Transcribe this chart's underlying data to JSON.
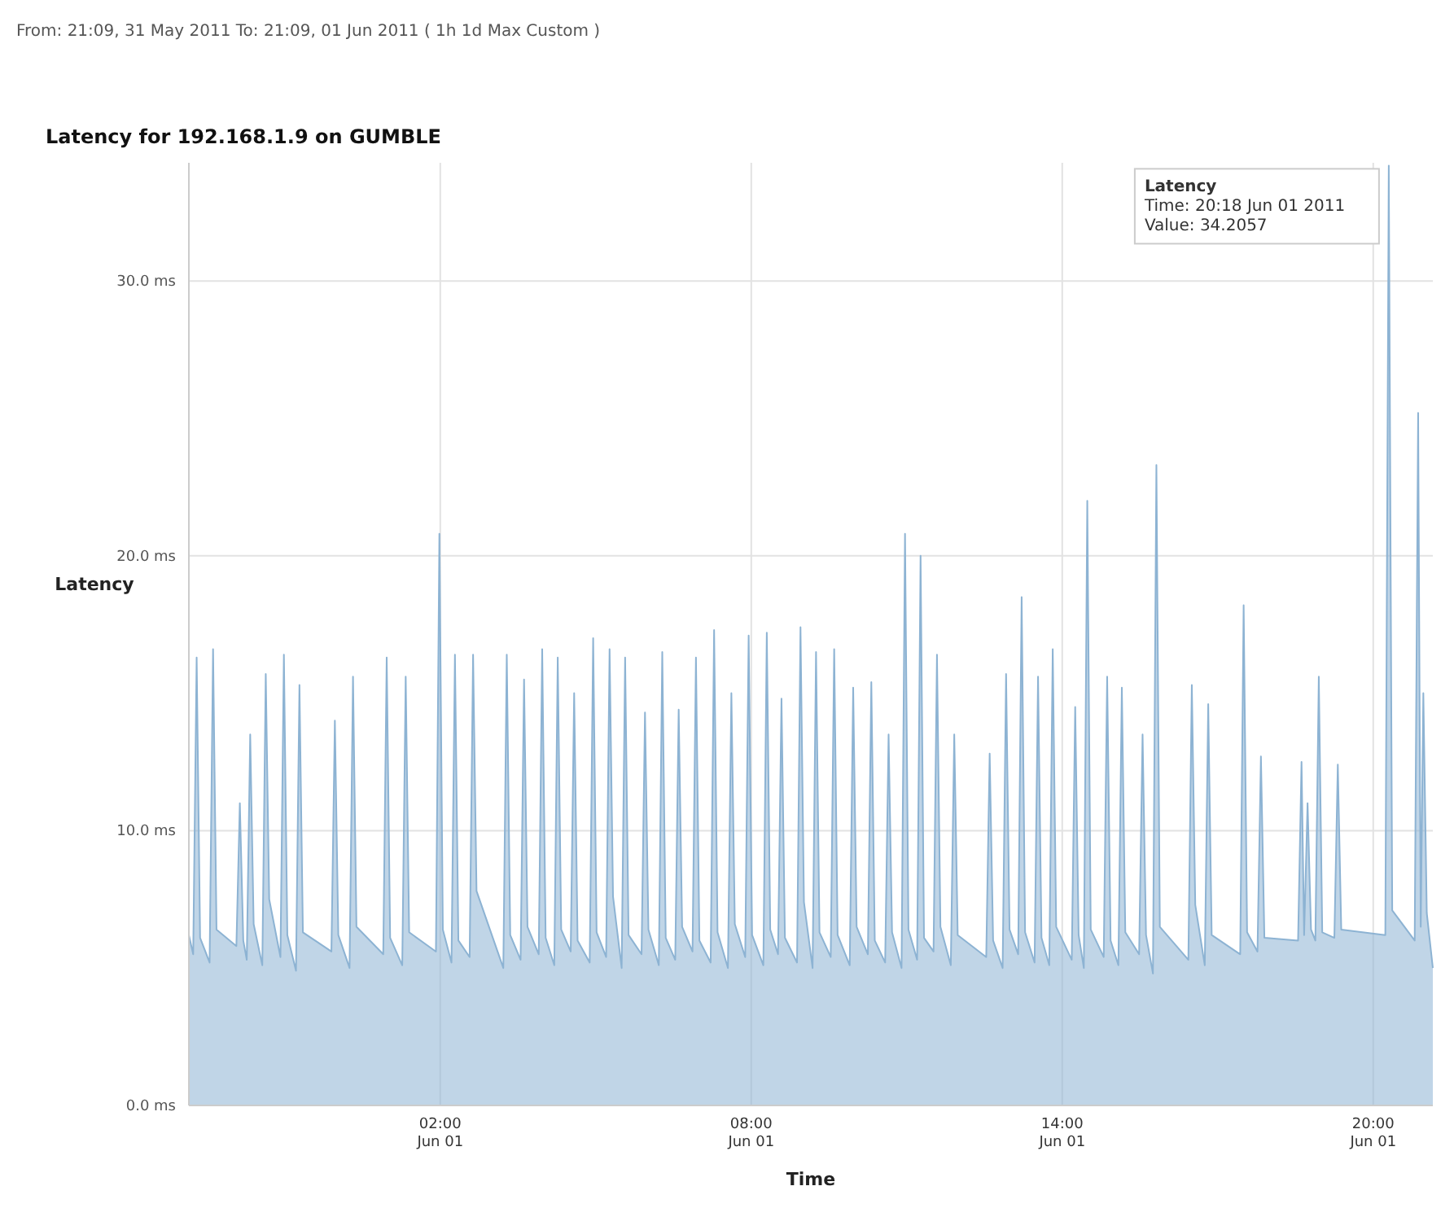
{
  "chart_data": {
    "type": "area",
    "title": "Latency for 192.168.1.9 on GUMBLE",
    "subtitle": "From: 21:09, 31 May 2011 To: 21:09, 01 Jun 2011 ( 1h 1d Max Custom )",
    "xlabel": "Time",
    "ylabel": "Latency",
    "xlim": [
      "2011-05-31T21:09",
      "2011-06-01T21:09"
    ],
    "xticks": [
      {
        "value": "2011-06-01T02:00",
        "label": "02:00\nJun 01"
      },
      {
        "value": "2011-06-01T08:00",
        "label": "08:00\nJun 01"
      },
      {
        "value": "2011-06-01T14:00",
        "label": "14:00\nJun 01"
      },
      {
        "value": "2011-06-01T20:00",
        "label": "20:00\nJun 01"
      }
    ],
    "ylim": [
      0,
      34.3
    ],
    "yticks": [
      {
        "value": 0,
        "label": "0.0 ms"
      },
      {
        "value": 10,
        "label": "10.0 ms"
      },
      {
        "value": 20,
        "label": "20.0 ms"
      },
      {
        "value": 30,
        "label": "30.0 ms"
      }
    ],
    "grid": true,
    "annotations": [
      {
        "text": "Latency\nTime: 20:18 Jun 01 2011\nValue: 34.2057",
        "x": "2011-06-01T20:18",
        "y": 34.2
      }
    ],
    "series": [
      {
        "color": "#8db3d3",
        "x": [
          "2011-05-31T21:09",
          "2011-05-31T21:14",
          "2011-05-31T21:18",
          "2011-05-31T21:22",
          "2011-05-31T21:33",
          "2011-05-31T21:37",
          "2011-05-31T21:41",
          "2011-05-31T22:04",
          "2011-05-31T22:08",
          "2011-05-31T22:12",
          "2011-05-31T22:16",
          "2011-05-31T22:20",
          "2011-05-31T22:24",
          "2011-05-31T22:34",
          "2011-05-31T22:38",
          "2011-05-31T22:42",
          "2011-05-31T22:55",
          "2011-05-31T22:59",
          "2011-05-31T23:03",
          "2011-05-31T23:13",
          "2011-05-31T23:17",
          "2011-05-31T23:21",
          "2011-05-31T23:54",
          "2011-05-31T23:58",
          "2011-06-01T00:02",
          "2011-06-01T00:15",
          "2011-06-01T00:19",
          "2011-06-01T00:23",
          "2011-06-01T00:54",
          "2011-06-01T00:58",
          "2011-06-01T01:02",
          "2011-06-01T01:16",
          "2011-06-01T01:20",
          "2011-06-01T01:24",
          "2011-06-01T01:55",
          "2011-06-01T01:59",
          "2011-06-01T02:03",
          "2011-06-01T02:13",
          "2011-06-01T02:17",
          "2011-06-01T02:21",
          "2011-06-01T02:34",
          "2011-06-01T02:38",
          "2011-06-01T02:42",
          "2011-06-01T03:13",
          "2011-06-01T03:17",
          "2011-06-01T03:21",
          "2011-06-01T03:33",
          "2011-06-01T03:37",
          "2011-06-01T03:41",
          "2011-06-01T03:54",
          "2011-06-01T03:58",
          "2011-06-01T04:02",
          "2011-06-01T04:12",
          "2011-06-01T04:16",
          "2011-06-01T04:20",
          "2011-06-01T04:31",
          "2011-06-01T04:35",
          "2011-06-01T04:39",
          "2011-06-01T04:53",
          "2011-06-01T04:57",
          "2011-06-01T05:01",
          "2011-06-01T05:12",
          "2011-06-01T05:16",
          "2011-06-01T05:20",
          "2011-06-01T05:30",
          "2011-06-01T05:34",
          "2011-06-01T05:38",
          "2011-06-01T05:53",
          "2011-06-01T05:57",
          "2011-06-01T06:01",
          "2011-06-01T06:13",
          "2011-06-01T06:17",
          "2011-06-01T06:21",
          "2011-06-01T06:32",
          "2011-06-01T06:36",
          "2011-06-01T06:40",
          "2011-06-01T06:52",
          "2011-06-01T06:56",
          "2011-06-01T07:00",
          "2011-06-01T07:13",
          "2011-06-01T07:17",
          "2011-06-01T07:21",
          "2011-06-01T07:33",
          "2011-06-01T07:37",
          "2011-06-01T07:41",
          "2011-06-01T07:53",
          "2011-06-01T07:57",
          "2011-06-01T08:01",
          "2011-06-01T08:14",
          "2011-06-01T08:18",
          "2011-06-01T08:22",
          "2011-06-01T08:31",
          "2011-06-01T08:35",
          "2011-06-01T08:39",
          "2011-06-01T08:53",
          "2011-06-01T08:57",
          "2011-06-01T09:01",
          "2011-06-01T09:11",
          "2011-06-01T09:15",
          "2011-06-01T09:19",
          "2011-06-01T09:32",
          "2011-06-01T09:36",
          "2011-06-01T09:40",
          "2011-06-01T09:54",
          "2011-06-01T09:58",
          "2011-06-01T10:02",
          "2011-06-01T10:15",
          "2011-06-01T10:19",
          "2011-06-01T10:23",
          "2011-06-01T10:35",
          "2011-06-01T10:39",
          "2011-06-01T10:43",
          "2011-06-01T10:54",
          "2011-06-01T10:58",
          "2011-06-01T11:02",
          "2011-06-01T11:12",
          "2011-06-01T11:16",
          "2011-06-01T11:20",
          "2011-06-01T11:31",
          "2011-06-01T11:35",
          "2011-06-01T11:39",
          "2011-06-01T11:51",
          "2011-06-01T11:55",
          "2011-06-01T11:59",
          "2011-06-01T12:32",
          "2011-06-01T12:36",
          "2011-06-01T12:40",
          "2011-06-01T12:51",
          "2011-06-01T12:55",
          "2011-06-01T12:59",
          "2011-06-01T13:09",
          "2011-06-01T13:13",
          "2011-06-01T13:17",
          "2011-06-01T13:28",
          "2011-06-01T13:32",
          "2011-06-01T13:36",
          "2011-06-01T13:45",
          "2011-06-01T13:49",
          "2011-06-01T13:53",
          "2011-06-01T14:11",
          "2011-06-01T14:15",
          "2011-06-01T14:19",
          "2011-06-01T14:25",
          "2011-06-01T14:29",
          "2011-06-01T14:33",
          "2011-06-01T14:48",
          "2011-06-01T14:52",
          "2011-06-01T14:56",
          "2011-06-01T15:05",
          "2011-06-01T15:09",
          "2011-06-01T15:13",
          "2011-06-01T15:29",
          "2011-06-01T15:33",
          "2011-06-01T15:37",
          "2011-06-01T15:45",
          "2011-06-01T15:49",
          "2011-06-01T15:53",
          "2011-06-01T16:26",
          "2011-06-01T16:30",
          "2011-06-01T16:34",
          "2011-06-01T16:45",
          "2011-06-01T16:49",
          "2011-06-01T16:53",
          "2011-06-01T17:26",
          "2011-06-01T17:30",
          "2011-06-01T17:34",
          "2011-06-01T17:46",
          "2011-06-01T17:50",
          "2011-06-01T17:54",
          "2011-06-01T18:33",
          "2011-06-01T18:37",
          "2011-06-01T18:40",
          "2011-06-01T18:44",
          "2011-06-01T18:48",
          "2011-06-01T18:53",
          "2011-06-01T18:57",
          "2011-06-01T19:01",
          "2011-06-01T19:15",
          "2011-06-01T19:19",
          "2011-06-01T19:23",
          "2011-06-01T20:14",
          "2011-06-01T20:18",
          "2011-06-01T20:22",
          "2011-06-01T20:48",
          "2011-06-01T20:52",
          "2011-06-01T20:55",
          "2011-06-01T20:58",
          "2011-06-01T21:02",
          "2011-06-01T21:09"
        ],
        "values": [
          6.2,
          5.5,
          16.3,
          6.1,
          5.2,
          16.6,
          6.4,
          5.8,
          11,
          6.0,
          5.3,
          13.5,
          6.6,
          5.1,
          15.7,
          7.5,
          5.4,
          16.4,
          6.2,
          4.9,
          15.3,
          6.3,
          5.6,
          14,
          6.2,
          5.0,
          15.6,
          6.5,
          5.5,
          16.3,
          6.1,
          5.1,
          15.6,
          6.3,
          5.6,
          20.8,
          6.4,
          5.2,
          16.4,
          6.0,
          5.4,
          16.4,
          7.8,
          5.0,
          16.4,
          6.2,
          5.3,
          15.5,
          6.5,
          5.5,
          16.6,
          6.1,
          5.1,
          16.3,
          6.4,
          5.6,
          15,
          6.0,
          5.2,
          17,
          6.3,
          5.4,
          16.6,
          7.6,
          5.0,
          16.3,
          6.2,
          5.5,
          14.3,
          6.4,
          5.1,
          16.5,
          6.1,
          5.3,
          14.4,
          6.5,
          5.6,
          16.3,
          6.0,
          5.2,
          17.3,
          6.3,
          5.0,
          15,
          6.6,
          5.4,
          17.1,
          6.2,
          5.1,
          17.2,
          6.4,
          5.5,
          14.8,
          6.1,
          5.2,
          17.4,
          7.4,
          5.0,
          16.5,
          6.3,
          5.4,
          16.6,
          6.2,
          5.1,
          15.2,
          6.5,
          5.5,
          15.4,
          6.0,
          5.2,
          13.5,
          6.3,
          5.0,
          20.8,
          6.4,
          5.3,
          20,
          6.1,
          5.6,
          16.4,
          6.5,
          5.1,
          13.5,
          6.2,
          5.4,
          12.8,
          6.0,
          5.0,
          15.7,
          6.4,
          5.5,
          18.5,
          6.3,
          5.2,
          15.6,
          6.1,
          5.1,
          16.6,
          6.5,
          5.3,
          14.5,
          6.2,
          5.0,
          22,
          6.4,
          5.4,
          15.6,
          6.0,
          5.1,
          15.2,
          6.3,
          5.5,
          13.5,
          6.2,
          4.8,
          23.3,
          6.5,
          5.3,
          15.3,
          7.3,
          5.1,
          14.6,
          6.2,
          5.5,
          18.2,
          6.3,
          5.6,
          12.7,
          6.1,
          6.0,
          12.5,
          6.2,
          11,
          6.4,
          6.0,
          15.6,
          6.3,
          6.1,
          12.4,
          6.4,
          6.2,
          34.2,
          7.1,
          6.0,
          25.2,
          6.5,
          15,
          7.0,
          5.0
        ]
      }
    ]
  }
}
